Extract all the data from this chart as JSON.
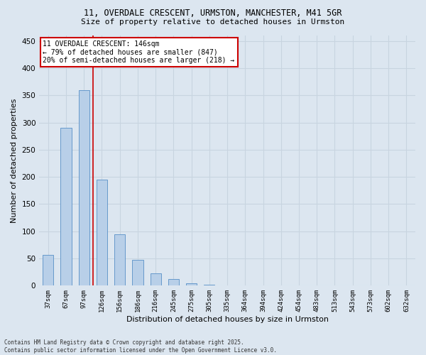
{
  "title_line1": "11, OVERDALE CRESCENT, URMSTON, MANCHESTER, M41 5GR",
  "title_line2": "Size of property relative to detached houses in Urmston",
  "xlabel": "Distribution of detached houses by size in Urmston",
  "ylabel": "Number of detached properties",
  "bar_labels": [
    "37sqm",
    "67sqm",
    "97sqm",
    "126sqm",
    "156sqm",
    "186sqm",
    "216sqm",
    "245sqm",
    "275sqm",
    "305sqm",
    "335sqm",
    "364sqm",
    "394sqm",
    "424sqm",
    "454sqm",
    "483sqm",
    "513sqm",
    "543sqm",
    "573sqm",
    "602sqm",
    "632sqm"
  ],
  "bar_heights": [
    57,
    290,
    360,
    195,
    95,
    47,
    22,
    12,
    5,
    2,
    1,
    0,
    0,
    0,
    0,
    0,
    0,
    0,
    0,
    0,
    0
  ],
  "bar_color": "#b8cfe8",
  "bar_edge_color": "#6699cc",
  "background_color": "#dce6f0",
  "grid_color": "#c8d4e0",
  "property_line_color": "#cc0000",
  "annotation_box_color": "#ffffff",
  "annotation_box_edge": "#cc0000",
  "annotation_text": "11 OVERDALE CRESCENT: 146sqm\n← 79% of detached houses are smaller (847)\n20% of semi-detached houses are larger (218) →",
  "ylim": [
    0,
    460
  ],
  "yticks": [
    0,
    50,
    100,
    150,
    200,
    250,
    300,
    350,
    400,
    450
  ],
  "footer_line1": "Contains HM Land Registry data © Crown copyright and database right 2025.",
  "footer_line2": "Contains public sector information licensed under the Open Government Licence v3.0."
}
